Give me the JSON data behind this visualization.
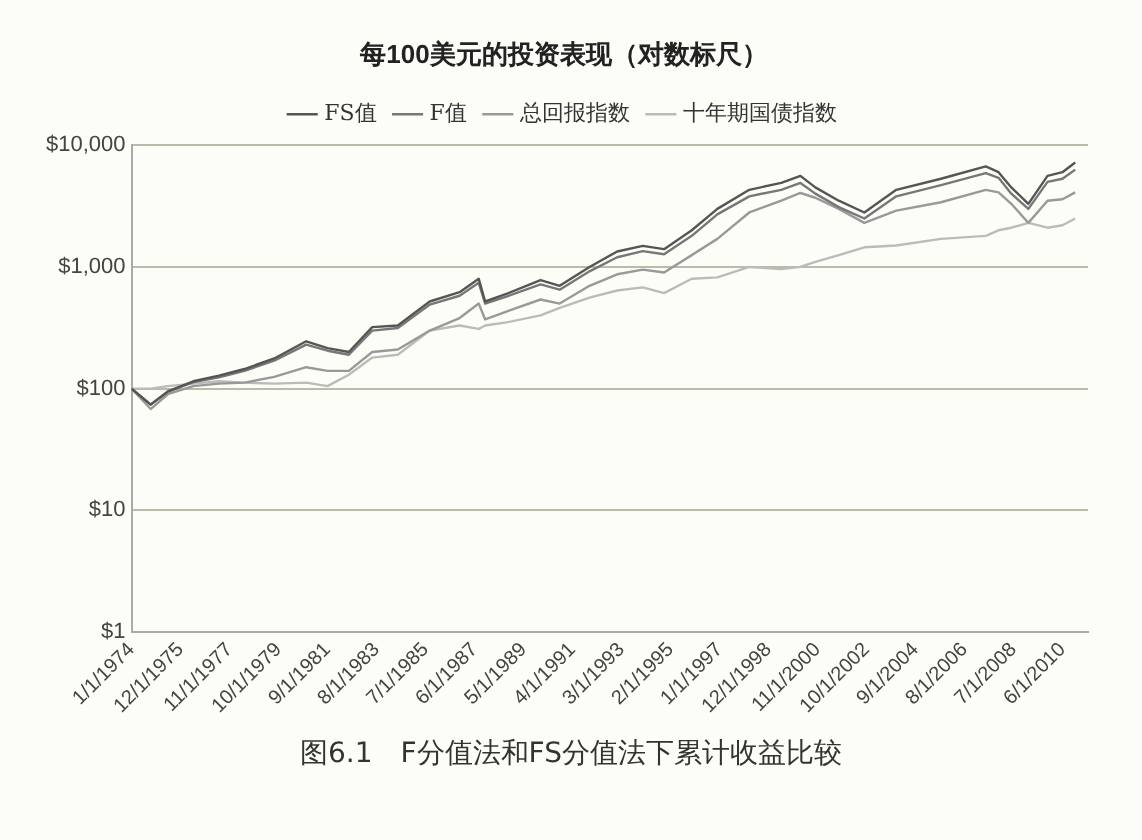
{
  "chart_data": {
    "type": "line",
    "title": "每100美元的投资表现（对数标尺）",
    "x": [
      "1974-01",
      "1974-10",
      "1975-06",
      "1976-06",
      "1977-06",
      "1978-06",
      "1979-08",
      "1980-11",
      "1981-09",
      "1982-07",
      "1983-06",
      "1984-06",
      "1985-09",
      "1986-11",
      "1987-08",
      "1987-11",
      "1988-09",
      "1990-01",
      "1990-10",
      "1991-12",
      "1993-01",
      "1994-01",
      "1994-11",
      "1995-12",
      "1996-12",
      "1998-03",
      "1999-06",
      "2000-03",
      "2000-10",
      "2001-09",
      "2002-09",
      "2003-12",
      "2005-09",
      "2007-06",
      "2007-12",
      "2008-06",
      "2009-02",
      "2009-11",
      "2010-06",
      "2010-12"
    ],
    "series": [
      {
        "name": "FS值",
        "color": "#555555",
        "values": [
          100,
          74,
          95,
          115,
          128,
          145,
          177,
          245,
          215,
          200,
          320,
          330,
          520,
          620,
          800,
          520,
          600,
          780,
          700,
          1000,
          1340,
          1490,
          1400,
          2000,
          3000,
          4300,
          4900,
          5600,
          4500,
          3500,
          2800,
          4300,
          5300,
          6700,
          6000,
          4500,
          3300,
          5600,
          6000,
          7200
        ]
      },
      {
        "name": "F值",
        "color": "#777777",
        "values": [
          100,
          74,
          94,
          113,
          124,
          140,
          170,
          230,
          205,
          190,
          300,
          315,
          490,
          580,
          740,
          500,
          570,
          720,
          650,
          920,
          1200,
          1350,
          1270,
          1800,
          2700,
          3800,
          4300,
          4900,
          4000,
          3100,
          2500,
          3800,
          4700,
          5900,
          5400,
          4000,
          3000,
          5000,
          5300,
          6300
        ]
      },
      {
        "name": "总回报指数",
        "color": "#999999",
        "values": [
          100,
          68,
          90,
          105,
          110,
          112,
          125,
          150,
          140,
          140,
          200,
          210,
          300,
          380,
          500,
          370,
          430,
          540,
          500,
          700,
          870,
          950,
          900,
          1250,
          1700,
          2800,
          3500,
          4050,
          3700,
          3000,
          2300,
          2900,
          3400,
          4300,
          4100,
          3300,
          2300,
          3500,
          3600,
          4100
        ]
      },
      {
        "name": "十年期国债指数",
        "color": "#bbbbbb",
        "values": [
          100,
          100,
          105,
          110,
          115,
          112,
          110,
          112,
          105,
          130,
          180,
          190,
          300,
          330,
          310,
          330,
          350,
          400,
          460,
          560,
          640,
          680,
          610,
          800,
          820,
          1000,
          960,
          1000,
          1100,
          1250,
          1450,
          1500,
          1700,
          1800,
          2000,
          2100,
          2300,
          2100,
          2200,
          2500
        ]
      }
    ],
    "xlim": [
      "1974-01",
      "2011-06"
    ],
    "xticks": [
      {
        "value": "1974-01",
        "label": "1/1/1974"
      },
      {
        "value": "1975-12",
        "label": "12/1/1975"
      },
      {
        "value": "1977-11",
        "label": "11/1/1977"
      },
      {
        "value": "1979-10",
        "label": "10/1/1979"
      },
      {
        "value": "1981-09",
        "label": "9/1/1981"
      },
      {
        "value": "1983-08",
        "label": "8/1/1983"
      },
      {
        "value": "1985-07",
        "label": "7/1/1985"
      },
      {
        "value": "1987-06",
        "label": "6/1/1987"
      },
      {
        "value": "1989-05",
        "label": "5/1/1989"
      },
      {
        "value": "1991-04",
        "label": "4/1/1991"
      },
      {
        "value": "1993-03",
        "label": "3/1/1993"
      },
      {
        "value": "1995-02",
        "label": "2/1/1995"
      },
      {
        "value": "1997-01",
        "label": "1/1/1997"
      },
      {
        "value": "1998-12",
        "label": "12/1/1998"
      },
      {
        "value": "2000-11",
        "label": "11/1/2000"
      },
      {
        "value": "2002-10",
        "label": "10/1/2002"
      },
      {
        "value": "2004-09",
        "label": "9/1/2004"
      },
      {
        "value": "2006-08",
        "label": "8/1/2006"
      },
      {
        "value": "2008-07",
        "label": "7/1/2008"
      },
      {
        "value": "2010-06",
        "label": "6/1/2010"
      }
    ],
    "ylim": [
      1,
      10000
    ],
    "yticks": [
      {
        "value": 1,
        "label": "$1"
      },
      {
        "value": 10,
        "label": "$10"
      },
      {
        "value": 100,
        "label": "$100"
      },
      {
        "value": 1000,
        "label": "$1,000"
      },
      {
        "value": 10000,
        "label": "$10,000"
      }
    ],
    "log": "y",
    "grid": "y",
    "legend": "top",
    "marker": "none",
    "line_style": "solid",
    "annotations": [
      "图6.1　F分值法和FS分值法下累计收益比较"
    ]
  }
}
